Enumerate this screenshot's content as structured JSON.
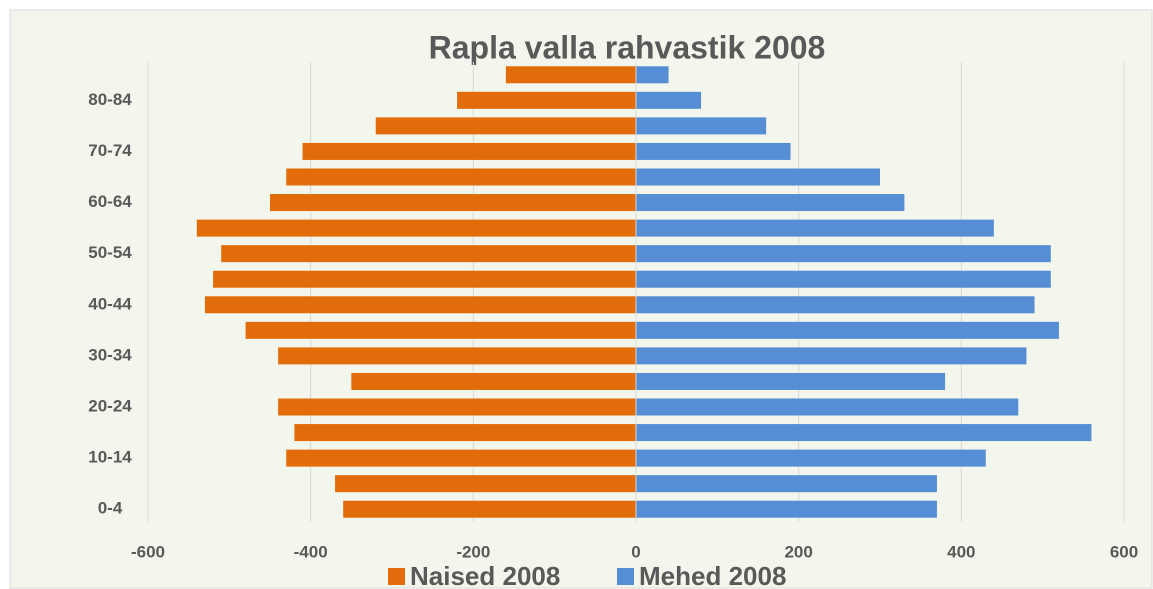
{
  "chart_data": {
    "type": "bar",
    "orientation": "horizontal",
    "stacked": true,
    "title": "Rapla valla rahvastik 2008",
    "categories": [
      "0-4",
      null,
      "10-14",
      null,
      "20-24",
      null,
      "30-34",
      null,
      "40-44",
      null,
      "50-54",
      null,
      "60-64",
      null,
      "70-74",
      null,
      "80-84",
      null
    ],
    "series": [
      {
        "name": "Naised 2008",
        "color": "#e36c0a",
        "values": [
          -360,
          -370,
          -430,
          -420,
          -440,
          -350,
          -440,
          -480,
          -530,
          -520,
          -510,
          -540,
          -450,
          -430,
          -410,
          -320,
          -220,
          -160
        ]
      },
      {
        "name": "Mehed 2008",
        "color": "#558ed5",
        "values": [
          370,
          370,
          430,
          560,
          470,
          380,
          480,
          520,
          490,
          510,
          510,
          440,
          330,
          300,
          190,
          160,
          80,
          40
        ]
      }
    ],
    "xlim": [
      -600,
      600
    ],
    "xticks": [
      -600,
      -400,
      -200,
      0,
      200,
      400,
      600
    ],
    "grid": true,
    "legend": "bottom"
  }
}
